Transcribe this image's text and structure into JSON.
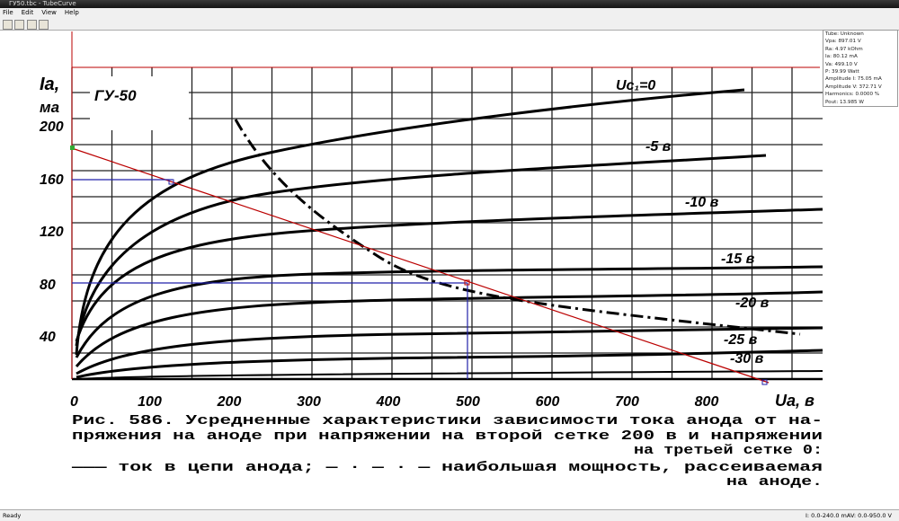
{
  "window": {
    "title": "ГУ50.tbc - TubeCurve"
  },
  "menu": [
    "File",
    "Edit",
    "View",
    "Help"
  ],
  "info": [
    "Tube: Unknown",
    "Vpa: 897.01 V",
    "Ra: 4.97 kOhm",
    "Ia: 80.12 mA",
    "Va: 499.10 V",
    "P: 39.99 Watt",
    "Amplitude I: 75.05 mA",
    "Amplitude V: 372.71 V",
    "Harmonics: 0.0000 %",
    "Pout: 13.985 W"
  ],
  "figure": {
    "tube": "ГУ-50",
    "y_label": "Iа,",
    "y_unit": "ма",
    "x_label": "Uа, в",
    "y_tick_labels": [
      "200",
      "160",
      "120",
      "80",
      "40"
    ],
    "x_tick_labels": [
      "0",
      "100",
      "200",
      "300",
      "400",
      "500",
      "600",
      "700",
      "800"
    ],
    "curve_labels": [
      "Uc₁=0",
      "-5 в",
      "-10 в",
      "-15 в",
      "-20 в",
      "-25 в",
      "-30 в"
    ],
    "caption": [
      "Рис. 586. Усредненные характеристики зависимости тока анода от на-",
      "пряжения на аноде при напряжении на второй сетке 200 в и напряжении",
      "на третьей сетке 0:",
      "——— ток в цепи анода; — · — · — наибольшая мощность, рассеиваемая",
      "на аноде."
    ]
  },
  "status": {
    "left": "Ready",
    "current": "I: 0.0-240.0 mA",
    "voltage": "V: 0.0-950.0 V"
  }
}
